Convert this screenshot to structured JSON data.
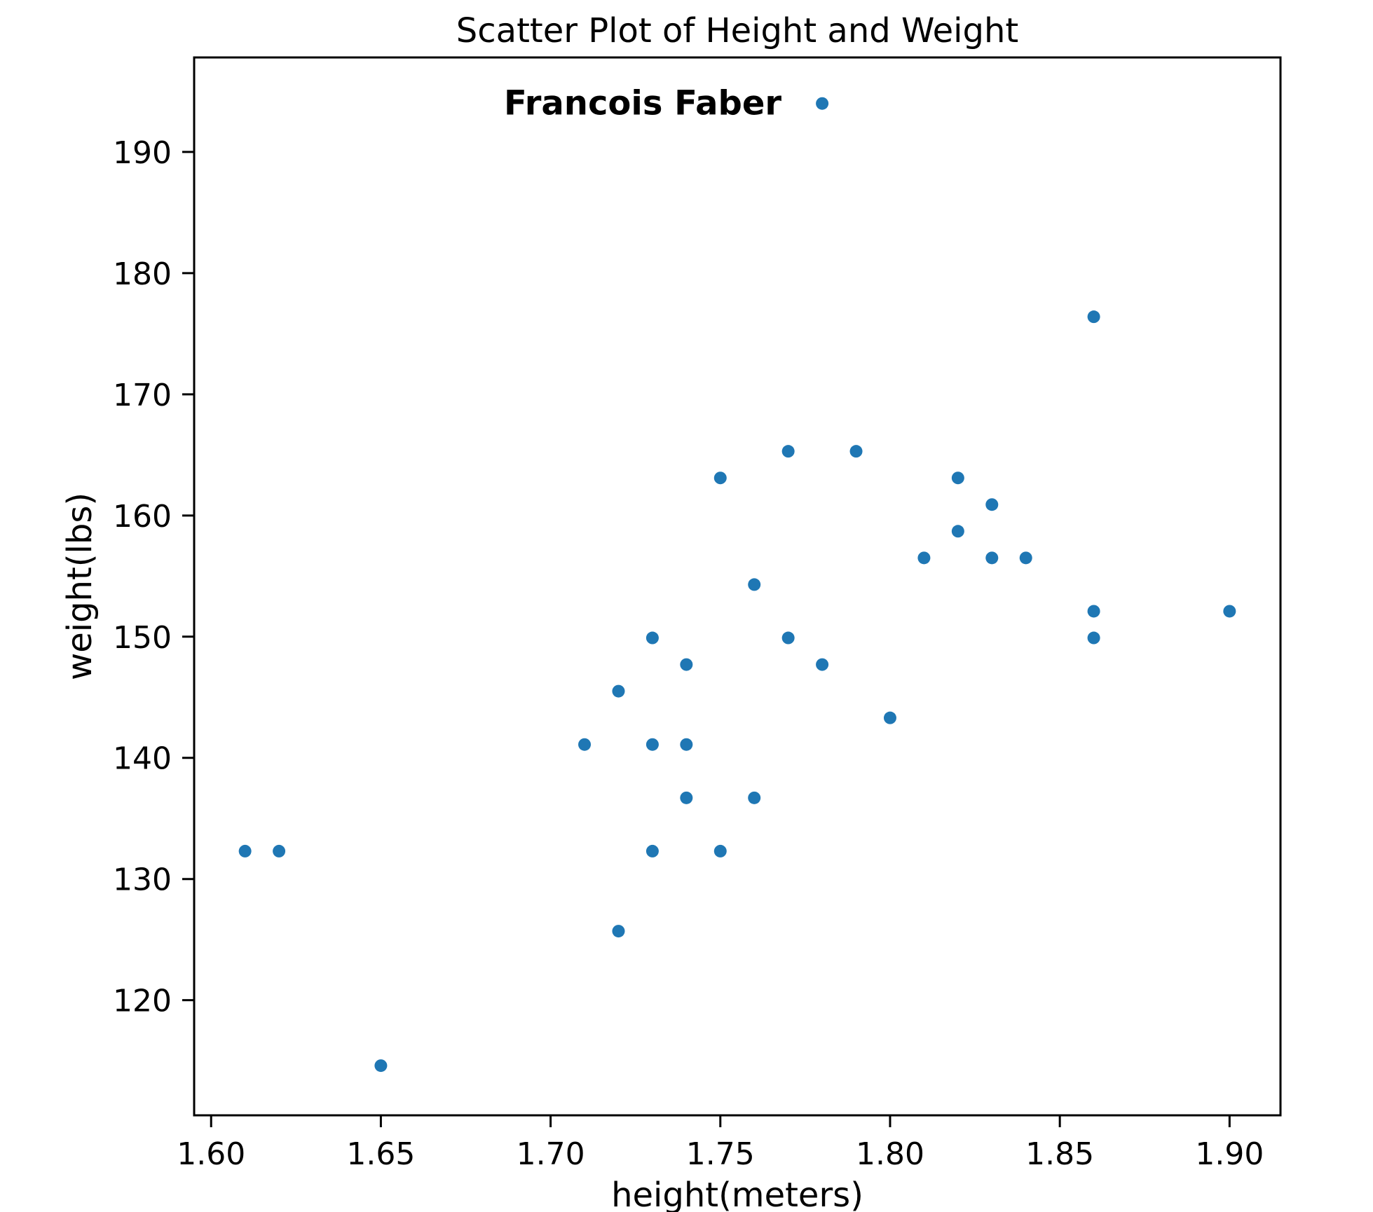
{
  "chart_data": {
    "type": "scatter",
    "title": "Scatter Plot of Height and Weight",
    "xlabel": "height(meters)",
    "ylabel": "weight(lbs)",
    "xlim": [
      1.595,
      1.915
    ],
    "ylim": [
      110.5,
      197.8
    ],
    "xticks": [
      1.6,
      1.65,
      1.7,
      1.75,
      1.8,
      1.85,
      1.9
    ],
    "xtick_labels": [
      "1.60",
      "1.65",
      "1.70",
      "1.75",
      "1.80",
      "1.85",
      "1.90"
    ],
    "yticks": [
      120,
      130,
      140,
      150,
      160,
      170,
      180,
      190
    ],
    "ytick_labels": [
      "120",
      "130",
      "140",
      "150",
      "160",
      "170",
      "180",
      "190"
    ],
    "grid": false,
    "color": "#1f77b4",
    "points": [
      {
        "x": 1.61,
        "y": 132.3
      },
      {
        "x": 1.62,
        "y": 132.3
      },
      {
        "x": 1.65,
        "y": 114.6
      },
      {
        "x": 1.71,
        "y": 141.1
      },
      {
        "x": 1.72,
        "y": 145.5
      },
      {
        "x": 1.72,
        "y": 125.7
      },
      {
        "x": 1.73,
        "y": 149.9
      },
      {
        "x": 1.73,
        "y": 141.1
      },
      {
        "x": 1.73,
        "y": 132.3
      },
      {
        "x": 1.74,
        "y": 147.7
      },
      {
        "x": 1.74,
        "y": 141.1
      },
      {
        "x": 1.74,
        "y": 136.7
      },
      {
        "x": 1.75,
        "y": 163.1
      },
      {
        "x": 1.75,
        "y": 132.3
      },
      {
        "x": 1.76,
        "y": 154.3
      },
      {
        "x": 1.76,
        "y": 136.7
      },
      {
        "x": 1.77,
        "y": 165.3
      },
      {
        "x": 1.77,
        "y": 149.9
      },
      {
        "x": 1.78,
        "y": 147.7
      },
      {
        "x": 1.79,
        "y": 165.3
      },
      {
        "x": 1.8,
        "y": 143.3
      },
      {
        "x": 1.81,
        "y": 156.5
      },
      {
        "x": 1.82,
        "y": 163.1
      },
      {
        "x": 1.82,
        "y": 158.7
      },
      {
        "x": 1.83,
        "y": 160.9
      },
      {
        "x": 1.83,
        "y": 156.5
      },
      {
        "x": 1.84,
        "y": 156.5
      },
      {
        "x": 1.86,
        "y": 176.4
      },
      {
        "x": 1.86,
        "y": 152.1
      },
      {
        "x": 1.86,
        "y": 149.9
      },
      {
        "x": 1.9,
        "y": 152.1
      },
      {
        "x": 1.78,
        "y": 194.0
      }
    ],
    "annotations": [
      {
        "text": "Francois Faber",
        "x": 1.78,
        "y": 194.0
      }
    ]
  }
}
